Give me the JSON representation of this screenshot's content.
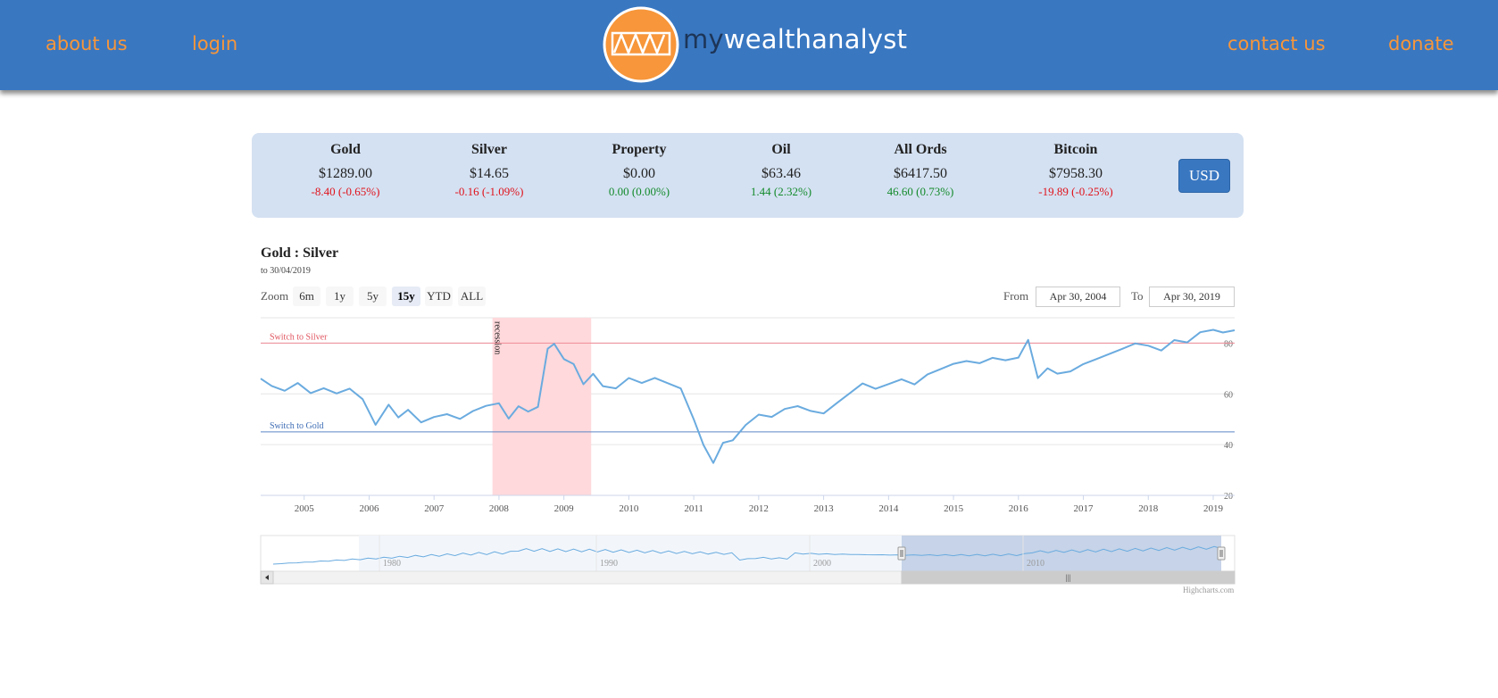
{
  "nav": {
    "about": "about us",
    "login": "login",
    "contact": "contact us",
    "donate": "donate"
  },
  "brand": {
    "prefix": "my",
    "suffix": "wealthanalyst"
  },
  "colors": {
    "header_bg": "#3977c1",
    "nav_link": "#f7963a",
    "logo_orange": "#f7963a",
    "ticker_bg": "#d4e1f2",
    "negative": "#e0121b",
    "positive": "#138a2b",
    "series": "#6aabdf",
    "recession_band": "#ffd9dc",
    "silver_line": "#f08a96",
    "gold_line": "#5b86c5"
  },
  "ticker": [
    {
      "name": "Gold",
      "price": "$1289.00",
      "change": "-8.40 (-0.65%)",
      "trend": "neg"
    },
    {
      "name": "Silver",
      "price": "$14.65",
      "change": "-0.16 (-1.09%)",
      "trend": "neg"
    },
    {
      "name": "Property",
      "price": "$0.00",
      "change": "0.00 (0.00%)",
      "trend": "pos"
    },
    {
      "name": "Oil",
      "price": "$63.46",
      "change": "1.44 (2.32%)",
      "trend": "pos"
    },
    {
      "name": "All Ords",
      "price": "$6417.50",
      "change": "46.60 (0.73%)",
      "trend": "pos"
    },
    {
      "name": "Bitcoin",
      "price": "$7958.30",
      "change": "-19.89 (-0.25%)",
      "trend": "neg"
    }
  ],
  "currency_button": "USD",
  "chart": {
    "title": "Gold : Silver",
    "subtitle": "to 30/04/2019",
    "zoom_label": "Zoom",
    "zoom_buttons": [
      "6m",
      "1y",
      "5y",
      "15y",
      "YTD",
      "ALL"
    ],
    "zoom_active": "15y",
    "from_label": "From",
    "from_value": "Apr 30, 2004",
    "to_label": "To",
    "to_value": "Apr 30, 2019",
    "credit": "Highcharts.com"
  },
  "chart_data": {
    "type": "line",
    "ylim": [
      20,
      90
    ],
    "yticks": [
      20,
      40,
      60,
      80
    ],
    "xlim": [
      2004.33,
      2019.33
    ],
    "xticks": [
      "2005",
      "2006",
      "2007",
      "2008",
      "2009",
      "2010",
      "2011",
      "2012",
      "2013",
      "2014",
      "2015",
      "2016",
      "2017",
      "2018",
      "2019"
    ],
    "plot_bands": [
      {
        "label": "recession",
        "from": 2007.9,
        "to": 2009.42
      }
    ],
    "plot_lines": [
      {
        "label": "Switch to Silver",
        "value": 80
      },
      {
        "label": "Switch to Gold",
        "value": 45
      }
    ],
    "series": [
      {
        "x": [
          2004.33,
          2004.5,
          2004.7,
          2004.9,
          2005.1,
          2005.3,
          2005.5,
          2005.7,
          2005.9,
          2006.1,
          2006.3,
          2006.45,
          2006.6,
          2006.8,
          2007.0,
          2007.2,
          2007.4,
          2007.6,
          2007.8,
          2008.0,
          2008.15,
          2008.3,
          2008.45,
          2008.6,
          2008.75,
          2008.85,
          2009.0,
          2009.15,
          2009.3,
          2009.45,
          2009.6,
          2009.8,
          2010.0,
          2010.2,
          2010.4,
          2010.6,
          2010.8,
          2011.0,
          2011.15,
          2011.3,
          2011.45,
          2011.6,
          2011.8,
          2012.0,
          2012.2,
          2012.4,
          2012.6,
          2012.8,
          2013.0,
          2013.2,
          2013.4,
          2013.6,
          2013.8,
          2014.0,
          2014.2,
          2014.4,
          2014.6,
          2014.8,
          2015.0,
          2015.2,
          2015.4,
          2015.6,
          2015.8,
          2016.0,
          2016.15,
          2016.3,
          2016.45,
          2016.6,
          2016.8,
          2017.0,
          2017.2,
          2017.4,
          2017.6,
          2017.8,
          2018.0,
          2018.2,
          2018.4,
          2018.6,
          2018.8,
          2019.0,
          2019.15,
          2019.33
        ],
        "values": [
          66,
          63,
          61,
          64,
          60,
          62,
          60,
          62,
          58,
          48,
          56,
          51,
          54,
          49,
          51,
          52,
          50,
          53,
          55,
          56,
          50,
          55,
          53,
          55,
          78,
          80,
          74,
          72,
          64,
          68,
          63,
          62,
          66,
          64,
          66,
          64,
          62,
          50,
          40,
          33,
          41,
          42,
          48,
          52,
          51,
          54,
          55,
          53,
          52,
          56,
          60,
          64,
          62,
          64,
          66,
          64,
          68,
          70,
          72,
          73,
          72,
          74,
          73,
          74,
          81,
          66,
          70,
          68,
          69,
          72,
          74,
          76,
          78,
          80,
          79,
          77,
          81,
          80,
          84,
          85,
          84,
          85
        ]
      }
    ]
  },
  "navigator": {
    "labels": [
      "1980",
      "1990",
      "2000",
      "2010"
    ],
    "scrollbar_grip": "|||"
  }
}
